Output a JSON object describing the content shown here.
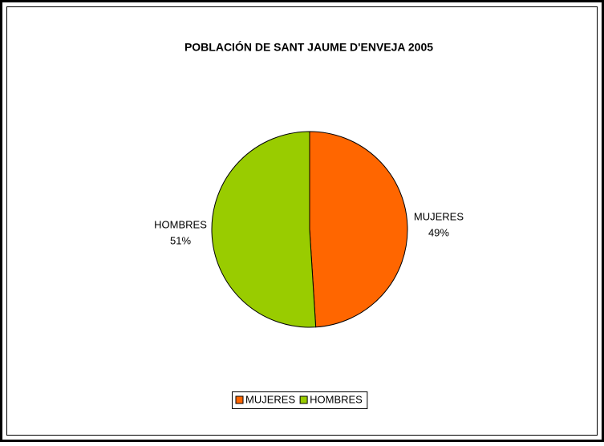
{
  "chart_data": {
    "type": "pie",
    "title": "POBLACIÓN DE SANT JAUME D'ENVEJA 2005",
    "categories": [
      "MUJERES",
      "HOMBRES"
    ],
    "values": [
      49,
      51
    ],
    "value_labels": [
      "49%",
      "51%"
    ],
    "colors": [
      "#ff6600",
      "#99cc00"
    ],
    "legend": "bottom"
  }
}
